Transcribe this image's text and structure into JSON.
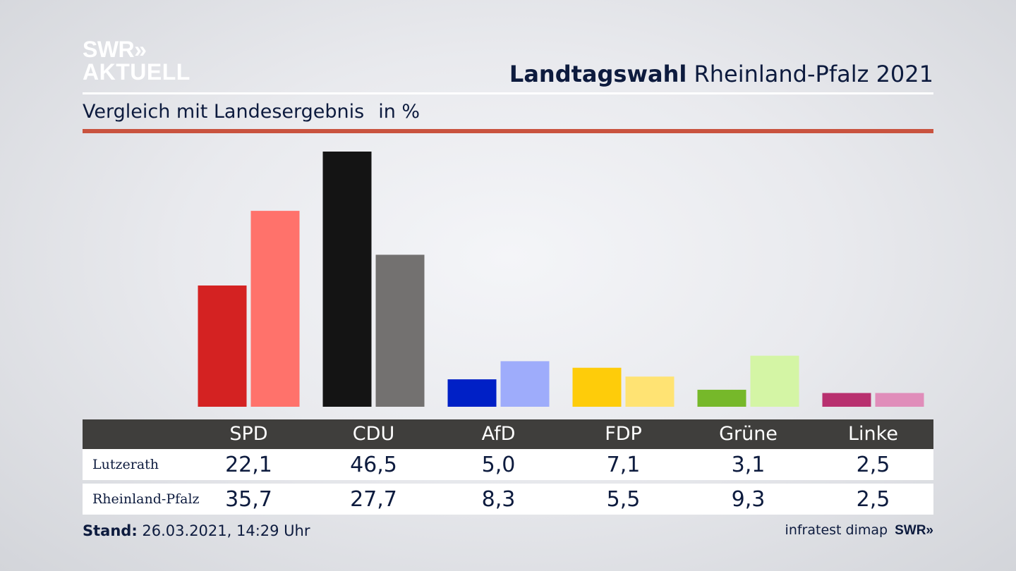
{
  "logo": {
    "line1": "SWR",
    "arrows": "»",
    "line2": "AKTUELL"
  },
  "header": {
    "title_bold": "Landtagswahl",
    "title_rest": " Rheinland-Pfalz 2021"
  },
  "subheader": {
    "text": "Vergleich mit Landesergebnis",
    "unit": "in %"
  },
  "colors": {
    "lutzerath": [
      "#d42222",
      "#141414",
      "#0020c6",
      "#fecc0a",
      "#76b82a",
      "#b8306f"
    ],
    "rheinland_pfalz": [
      "#ff726b",
      "#737170",
      "#9eacfb",
      "#ffe373",
      "#d4f5a5",
      "#e08dba"
    ],
    "accent_rule": "#c9533f",
    "table_header": "#3f3e3c"
  },
  "chart_data": {
    "type": "bar",
    "categories": [
      "SPD",
      "CDU",
      "AfD",
      "FDP",
      "Grüne",
      "Linke"
    ],
    "series": [
      {
        "name": "Lutzerath",
        "values": [
          22.1,
          46.5,
          5.0,
          7.1,
          3.1,
          2.5
        ]
      },
      {
        "name": "Rheinland-Pfalz",
        "values": [
          35.7,
          27.7,
          8.3,
          5.5,
          9.3,
          2.5
        ]
      }
    ],
    "title": "Landtagswahl Rheinland-Pfalz 2021",
    "subtitle": "Vergleich mit Landesergebnis",
    "unit": "in %",
    "grid": false,
    "legend": "table below chart"
  },
  "table": {
    "headers": [
      "SPD",
      "CDU",
      "AfD",
      "FDP",
      "Grüne",
      "Linke"
    ],
    "rows": [
      {
        "label": "Lutzerath",
        "values": [
          "22,1",
          "46,5",
          "5,0",
          "7,1",
          "3,1",
          "2,5"
        ]
      },
      {
        "label": "Rheinland-Pfalz",
        "values": [
          "35,7",
          "27,7",
          "8,3",
          "5,5",
          "9,3",
          "2,5"
        ]
      }
    ]
  },
  "footer": {
    "stand_label": "Stand:",
    "stand_value": " 26.03.2021, 14:29 Uhr",
    "source": "infratest dimap",
    "brand": "SWR»"
  }
}
